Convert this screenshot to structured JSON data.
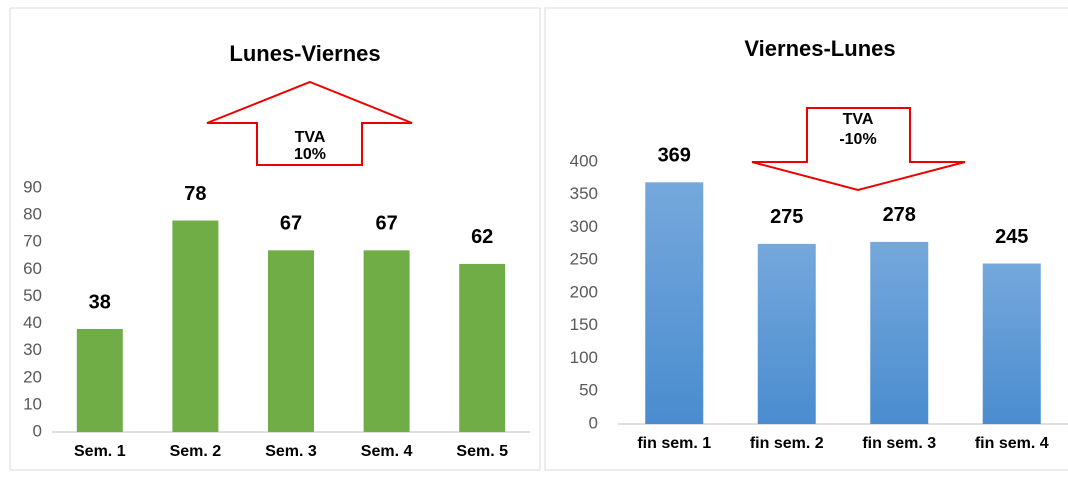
{
  "chart_data": [
    {
      "type": "bar",
      "title": "Lunes-Viernes",
      "categories": [
        "Sem. 1",
        "Sem. 2",
        "Sem. 3",
        "Sem. 4",
        "Sem. 5"
      ],
      "values": [
        38,
        78,
        67,
        67,
        62
      ],
      "color": "#70ad47",
      "ylim": [
        0,
        90
      ],
      "yticks": [
        0,
        10,
        20,
        30,
        40,
        50,
        60,
        70,
        80,
        90
      ],
      "grid": false,
      "annotation": [
        "TVA",
        "10%"
      ],
      "arrow": "up"
    },
    {
      "type": "bar",
      "title": "Viernes-Lunes",
      "categories": [
        "fin sem. 1",
        "fin sem. 2",
        "fin sem. 3",
        "fin sem. 4"
      ],
      "values": [
        369,
        275,
        278,
        245
      ],
      "color": "#5b9bd5",
      "ylim": [
        0,
        400
      ],
      "yticks": [
        0,
        50,
        100,
        150,
        200,
        250,
        300,
        350,
        400
      ],
      "grid": false,
      "annotation": [
        "TVA",
        "-10%"
      ],
      "arrow": "down"
    }
  ]
}
